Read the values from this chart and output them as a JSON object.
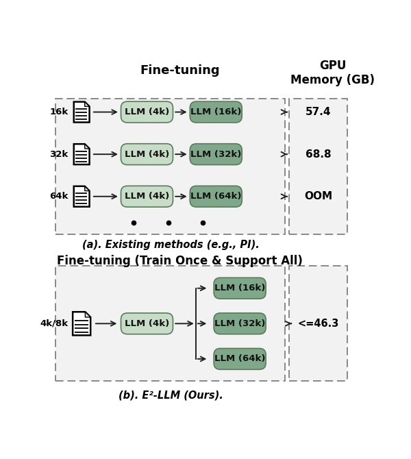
{
  "title_top": "Fine-tuning",
  "title_bottom": "Fine-tuning (Train Once & Support All)",
  "gpu_label_line1": "GPU",
  "gpu_label_line2": "Memory (GB)",
  "caption_a": "(a). Existing methods (e.g., PI).",
  "caption_b": "(b). E²-LLM (Ours).",
  "rows_a": [
    {
      "doc_label": "16k",
      "llm1": "LLM (4k)",
      "llm2": "LLM (16k)",
      "mem": "57.4"
    },
    {
      "doc_label": "32k",
      "llm1": "LLM (4k)",
      "llm2": "LLM (32k)",
      "mem": "68.8"
    },
    {
      "doc_label": "64k",
      "llm1": "LLM (4k)",
      "llm2": "LLM (64k)",
      "mem": "OOM"
    }
  ],
  "box_b_doc": "4k/8k",
  "box_b_llm1": "LLM (4k)",
  "box_b_outputs": [
    "LLM (16k)",
    "LLM (32k)",
    "LLM (64k)"
  ],
  "box_b_mem": "<=46.3",
  "color_llm_light": "#c8ddc8",
  "color_llm_dark": "#7fa88a",
  "color_bg": "#f0f0f0",
  "color_border": "#888888",
  "color_white": "#ffffff",
  "color_black": "#000000",
  "color_arrow": "#222222",
  "fig_w": 6.0,
  "fig_h": 6.7,
  "dpi": 100
}
